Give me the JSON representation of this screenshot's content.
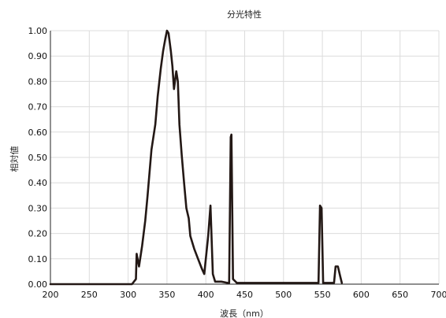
{
  "chart_data": {
    "type": "line",
    "title": "分光特性",
    "xlabel": "波長（nm）",
    "ylabel": "相対値",
    "xlim": [
      200,
      700
    ],
    "ylim": [
      0,
      1.0
    ],
    "x_ticks": [
      "200",
      "250",
      "300",
      "350",
      "400",
      "450",
      "500",
      "550",
      "600",
      "650",
      "700"
    ],
    "y_ticks": [
      "0.00",
      "0.10",
      "0.20",
      "0.30",
      "0.40",
      "0.50",
      "0.60",
      "0.70",
      "0.80",
      "0.90",
      "1.00"
    ],
    "grid": true,
    "legend": "none",
    "series": [
      {
        "color": "#231815",
        "points": [
          [
            200,
            0.0
          ],
          [
            305,
            0.0
          ],
          [
            310,
            0.02
          ],
          [
            311,
            0.12
          ],
          [
            314,
            0.07
          ],
          [
            318,
            0.15
          ],
          [
            322,
            0.25
          ],
          [
            325,
            0.35
          ],
          [
            330,
            0.53
          ],
          [
            335,
            0.63
          ],
          [
            338,
            0.74
          ],
          [
            342,
            0.85
          ],
          [
            345,
            0.92
          ],
          [
            348,
            0.97
          ],
          [
            350,
            1.0
          ],
          [
            352,
            0.99
          ],
          [
            355,
            0.92
          ],
          [
            357,
            0.86
          ],
          [
            359,
            0.77
          ],
          [
            362,
            0.84
          ],
          [
            364,
            0.8
          ],
          [
            366,
            0.63
          ],
          [
            369,
            0.51
          ],
          [
            372,
            0.4
          ],
          [
            375,
            0.3
          ],
          [
            378,
            0.26
          ],
          [
            380,
            0.19
          ],
          [
            385,
            0.14
          ],
          [
            390,
            0.1
          ],
          [
            395,
            0.06
          ],
          [
            398,
            0.04
          ],
          [
            403,
            0.19
          ],
          [
            406,
            0.31
          ],
          [
            409,
            0.04
          ],
          [
            412,
            0.01
          ],
          [
            415,
            0.01
          ],
          [
            420,
            0.01
          ],
          [
            428,
            0.005
          ],
          [
            430,
            0.005
          ],
          [
            432,
            0.58
          ],
          [
            433,
            0.59
          ],
          [
            435,
            0.02
          ],
          [
            440,
            0.005
          ],
          [
            545,
            0.005
          ],
          [
            547,
            0.31
          ],
          [
            549,
            0.3
          ],
          [
            551,
            0.005
          ],
          [
            565,
            0.005
          ],
          [
            567,
            0.07
          ],
          [
            570,
            0.07
          ],
          [
            573,
            0.03
          ],
          [
            575,
            0.005
          ]
        ]
      }
    ]
  }
}
